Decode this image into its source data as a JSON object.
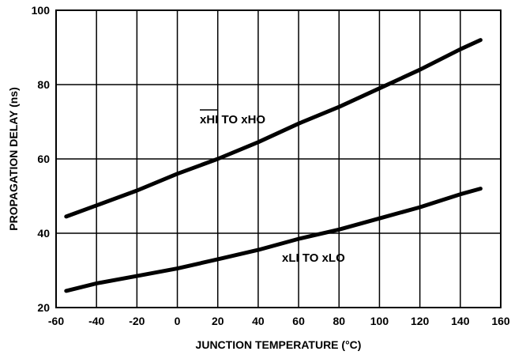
{
  "chart_data": {
    "type": "line",
    "title": "",
    "xlabel": "JUNCTION TEMPERATURE (°C)",
    "ylabel": "PROPAGATION DELAY (ns)",
    "xlim": [
      -60,
      160
    ],
    "ylim": [
      20,
      100
    ],
    "xticks": [
      -60,
      -40,
      -20,
      0,
      20,
      40,
      60,
      80,
      100,
      120,
      140,
      160
    ],
    "yticks": [
      20,
      40,
      60,
      80,
      100
    ],
    "grid": true,
    "series": [
      {
        "name": "xHI TO xHO",
        "name_overline": "xHI",
        "x": [
          -55,
          -40,
          -20,
          0,
          20,
          40,
          60,
          80,
          100,
          120,
          140,
          150
        ],
        "y": [
          44.5,
          47.5,
          51.5,
          56,
          60,
          64.5,
          69.5,
          74,
          79,
          84,
          89.5,
          92
        ]
      },
      {
        "name": "xLI TO xLO",
        "x": [
          -55,
          -40,
          -20,
          0,
          20,
          40,
          60,
          80,
          100,
          120,
          140,
          150
        ],
        "y": [
          24.5,
          26.5,
          28.5,
          30.5,
          33,
          35.5,
          38.5,
          41,
          44,
          47,
          50.5,
          52
        ]
      }
    ]
  }
}
